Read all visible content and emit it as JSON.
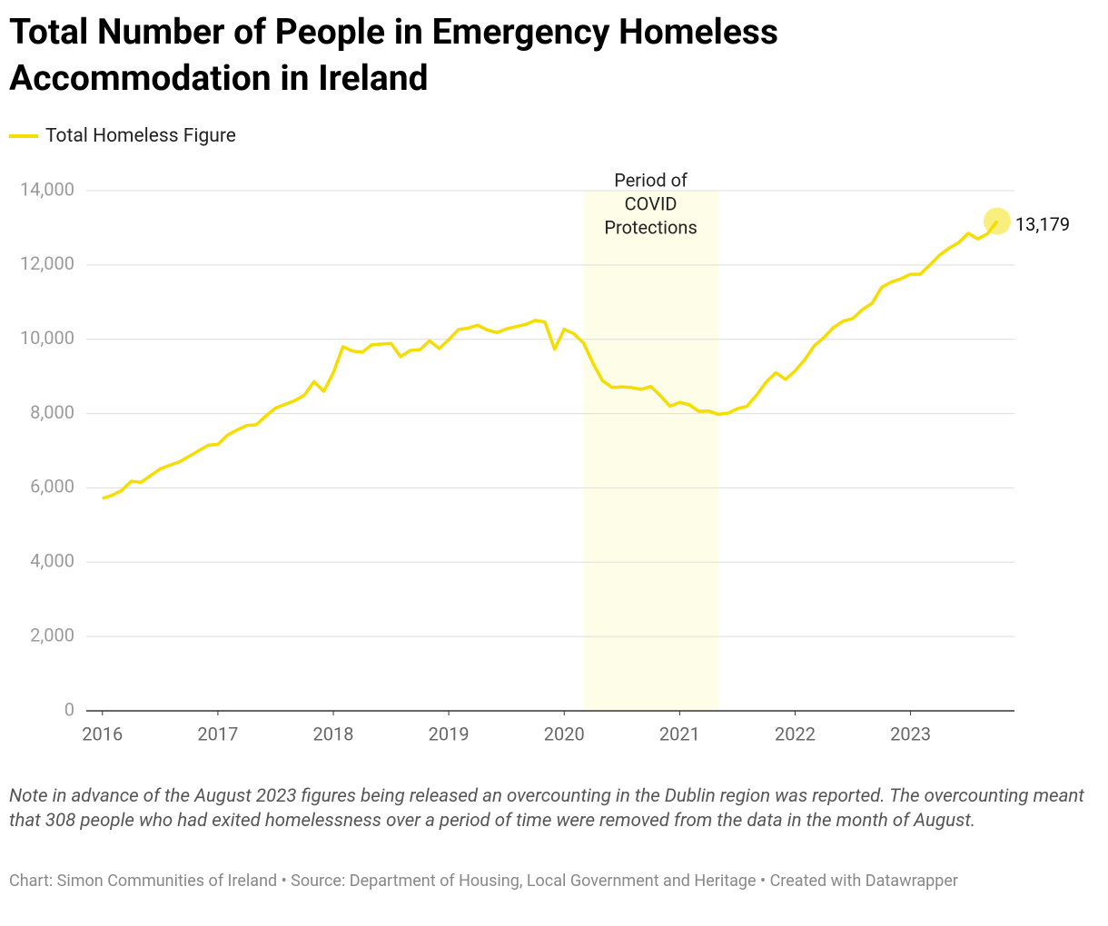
{
  "chart_data": {
    "type": "line",
    "title": "Total Number of People in Emergency Homeless Accommodation in Ireland",
    "note": "Note in advance of the August 2023 figures being released an overcounting in the Dublin region was reported. The overcounting meant that 308 people who had exited homelessness over a period of time were removed from the data in the month of August.",
    "source": "Chart: Simon Communities of Ireland • Source: Department of Housing, Local Government and Heritage • Created with Datawrapper",
    "x": [
      2016,
      2016.083,
      2016.167,
      2016.25,
      2016.333,
      2016.417,
      2016.5,
      2016.583,
      2016.667,
      2016.75,
      2016.833,
      2016.917,
      2017,
      2017.083,
      2017.167,
      2017.25,
      2017.333,
      2017.417,
      2017.5,
      2017.583,
      2017.667,
      2017.75,
      2017.833,
      2017.917,
      2018,
      2018.083,
      2018.167,
      2018.25,
      2018.333,
      2018.417,
      2018.5,
      2018.583,
      2018.667,
      2018.75,
      2018.833,
      2018.917,
      2019,
      2019.083,
      2019.167,
      2019.25,
      2019.333,
      2019.417,
      2019.5,
      2019.583,
      2019.667,
      2019.75,
      2019.833,
      2019.917,
      2020,
      2020.083,
      2020.167,
      2020.25,
      2020.333,
      2020.417,
      2020.5,
      2020.583,
      2020.667,
      2020.75,
      2020.833,
      2020.917,
      2021,
      2021.083,
      2021.167,
      2021.25,
      2021.333,
      2021.417,
      2021.5,
      2021.583,
      2021.667,
      2021.75,
      2021.833,
      2021.917,
      2022,
      2022.083,
      2022.167,
      2022.25,
      2022.333,
      2022.417,
      2022.5,
      2022.583,
      2022.667,
      2022.75,
      2022.833,
      2022.917,
      2023,
      2023.083,
      2023.167,
      2023.25,
      2023.333,
      2023.417,
      2023.5,
      2023.583,
      2023.667,
      2023.75
    ],
    "series": [
      {
        "name": "Total Homeless Figure",
        "color": "#f5dd00",
        "values": [
          5715,
          5800,
          5930,
          6180,
          6150,
          6330,
          6510,
          6610,
          6700,
          6850,
          7000,
          7150,
          7170,
          7420,
          7560,
          7680,
          7700,
          7940,
          8150,
          8250,
          8350,
          8500,
          8860,
          8600,
          9100,
          9800,
          9680,
          9650,
          9850,
          9870,
          9890,
          9530,
          9700,
          9720,
          9960,
          9750,
          9990,
          10260,
          10300,
          10380,
          10250,
          10180,
          10280,
          10340,
          10400,
          10510,
          10460,
          9730,
          10270,
          10150,
          9900,
          9350,
          8880,
          8700,
          8720,
          8700,
          8650,
          8730,
          8480,
          8200,
          8300,
          8240,
          8060,
          8070,
          7980,
          8010,
          8130,
          8200,
          8500,
          8850,
          9100,
          8920,
          9150,
          9450,
          9830,
          10050,
          10320,
          10490,
          10560,
          10800,
          10970,
          11400,
          11540,
          11630,
          11750,
          11750,
          12000,
          12260,
          12450,
          12600,
          12850,
          12700,
          12840,
          13179
        ]
      }
    ],
    "end_label": "13,179",
    "highlight": {
      "range": [
        2020.167,
        2021.333
      ],
      "color": "#fefde8",
      "lines": [
        "Period of",
        "COVID",
        "Protections"
      ]
    },
    "xlim": [
      2015.86,
      2023.9
    ],
    "xticks": [
      2016,
      2017,
      2018,
      2019,
      2020,
      2021,
      2022,
      2023
    ],
    "ylim": [
      0,
      14000
    ],
    "yticks": [
      0,
      {
        "value": 2000,
        "label": "2,000"
      },
      {
        "value": 4000,
        "label": "4,000"
      },
      {
        "value": 6000,
        "label": "6,000"
      },
      {
        "value": 8000,
        "label": "8,000"
      },
      {
        "value": 10000,
        "label": "10,000"
      },
      {
        "value": 12000,
        "label": "12,000"
      },
      {
        "value": 14000,
        "label": "14,000"
      }
    ],
    "grid": true
  }
}
